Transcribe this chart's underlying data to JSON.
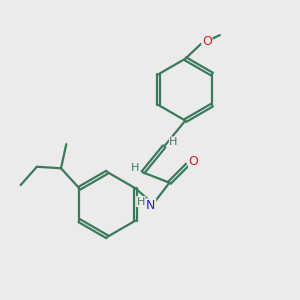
{
  "bg_color": "#ebebeb",
  "bond_color": "#3a7a5a",
  "nitrogen_color": "#2222cc",
  "oxygen_color": "#cc2222",
  "line_width": 1.6,
  "dbo": 0.055,
  "figsize": [
    3.0,
    3.0
  ],
  "dpi": 100,
  "xlim": [
    0,
    10
  ],
  "ylim": [
    0,
    10
  ]
}
